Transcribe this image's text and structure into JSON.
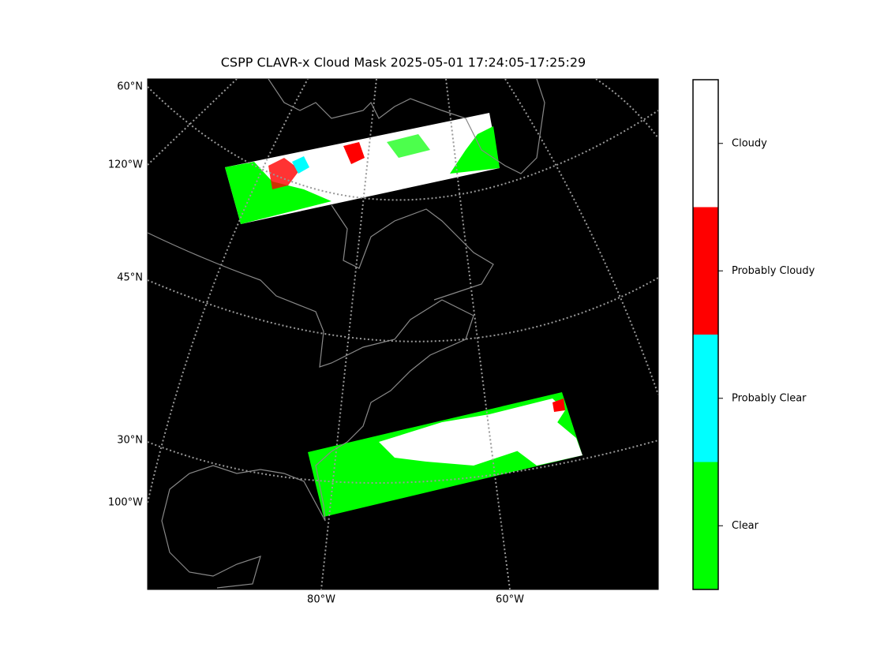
{
  "title": "CSPP CLAVR-x Cloud Mask 2025-05-01 17:24:05-17:25:29",
  "map": {
    "left_labels": [
      "60°N",
      "120°W",
      "45°N",
      "30°N",
      "100°W"
    ],
    "bottom_labels": [
      "80°W",
      "60°W"
    ]
  },
  "colorbar": {
    "classes": [
      {
        "label": "Clear",
        "color": "#00ff00"
      },
      {
        "label": "Probably Clear",
        "color": "#00ffff"
      },
      {
        "label": "Probably Cloudy",
        "color": "#ff0000"
      },
      {
        "label": "Cloudy",
        "color": "#ffffff"
      }
    ]
  }
}
